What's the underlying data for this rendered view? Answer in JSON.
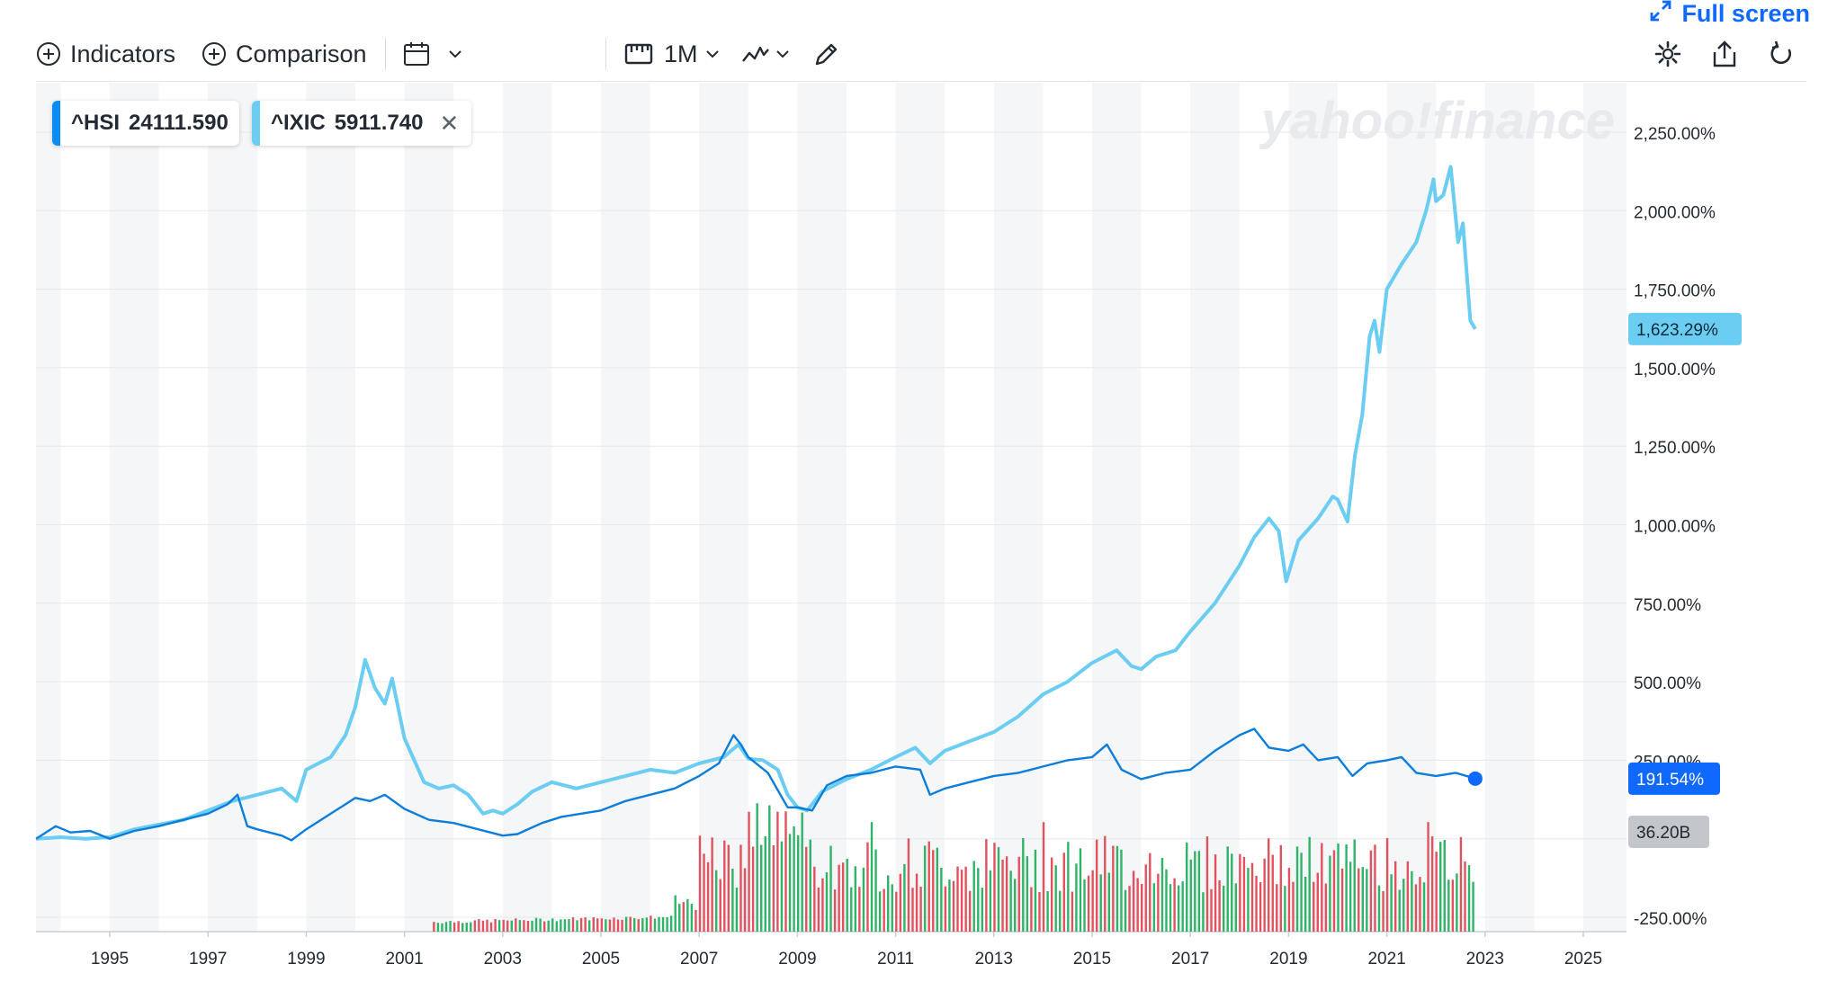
{
  "toolbar": {
    "indicators_label": "Indicators",
    "comparison_label": "Comparison",
    "interval_label": "1M",
    "fullscreen_label": "Full screen"
  },
  "legend": [
    {
      "symbol": "^HSI",
      "value": "24111.590",
      "color": "#0b8cf5"
    },
    {
      "symbol": "^IXIC",
      "value": "5911.740",
      "color": "#6bcdf2"
    }
  ],
  "watermark": "yahoo!finance",
  "colors": {
    "hsi": "#0b7dda",
    "ixic": "#6bcdf2",
    "volume_up": "#2fb368",
    "volume_down": "#e2525e",
    "accent": "#0f69ff"
  },
  "chart_data": {
    "type": "line",
    "ylim": [
      -250,
      2350
    ],
    "xlim": [
      1993.5,
      2026.5
    ],
    "y_ticks": [
      "2,250.00%",
      "2,000.00%",
      "1,750.00%",
      "1,500.00%",
      "1,250.00%",
      "1,000.00%",
      "750.00%",
      "500.00%",
      "250.00%",
      "-250.00%"
    ],
    "y_tick_values": [
      2250,
      2000,
      1750,
      1500,
      1250,
      1000,
      750,
      500,
      250,
      -250
    ],
    "x_ticks": [
      "1995",
      "1997",
      "1999",
      "2001",
      "2003",
      "2005",
      "2007",
      "2009",
      "2011",
      "2013",
      "2015",
      "2017",
      "2019",
      "2021",
      "2023",
      "2025"
    ],
    "x_tick_values": [
      1995,
      1997,
      1999,
      2001,
      2003,
      2005,
      2007,
      2009,
      2011,
      2013,
      2015,
      2017,
      2019,
      2021,
      2023,
      2025
    ],
    "badges": {
      "ixic_last": "1,623.29%",
      "hsi_last": "191.54%",
      "volume_last": "36.20B"
    },
    "series": [
      {
        "name": "^IXIC",
        "points": [
          [
            1993.5,
            0
          ],
          [
            1994.0,
            5
          ],
          [
            1994.5,
            0
          ],
          [
            1995.0,
            5
          ],
          [
            1995.5,
            30
          ],
          [
            1996.0,
            45
          ],
          [
            1996.5,
            60
          ],
          [
            1997.0,
            90
          ],
          [
            1997.5,
            120
          ],
          [
            1998.0,
            140
          ],
          [
            1998.5,
            160
          ],
          [
            1998.8,
            120
          ],
          [
            1999.0,
            220
          ],
          [
            1999.5,
            260
          ],
          [
            1999.8,
            330
          ],
          [
            2000.0,
            420
          ],
          [
            2000.2,
            570
          ],
          [
            2000.4,
            480
          ],
          [
            2000.6,
            430
          ],
          [
            2000.75,
            510
          ],
          [
            2001.0,
            320
          ],
          [
            2001.2,
            250
          ],
          [
            2001.4,
            180
          ],
          [
            2001.7,
            160
          ],
          [
            2002.0,
            170
          ],
          [
            2002.3,
            140
          ],
          [
            2002.6,
            80
          ],
          [
            2002.8,
            90
          ],
          [
            2003.0,
            80
          ],
          [
            2003.3,
            110
          ],
          [
            2003.6,
            150
          ],
          [
            2004.0,
            180
          ],
          [
            2004.5,
            160
          ],
          [
            2005.0,
            180
          ],
          [
            2005.5,
            200
          ],
          [
            2006.0,
            220
          ],
          [
            2006.5,
            210
          ],
          [
            2007.0,
            240
          ],
          [
            2007.5,
            260
          ],
          [
            2007.8,
            300
          ],
          [
            2008.0,
            255
          ],
          [
            2008.3,
            250
          ],
          [
            2008.6,
            220
          ],
          [
            2008.8,
            140
          ],
          [
            2009.0,
            100
          ],
          [
            2009.2,
            90
          ],
          [
            2009.5,
            150
          ],
          [
            2010.0,
            190
          ],
          [
            2010.5,
            220
          ],
          [
            2011.0,
            260
          ],
          [
            2011.4,
            290
          ],
          [
            2011.7,
            240
          ],
          [
            2012.0,
            280
          ],
          [
            2012.5,
            310
          ],
          [
            2013.0,
            340
          ],
          [
            2013.5,
            390
          ],
          [
            2014.0,
            460
          ],
          [
            2014.5,
            500
          ],
          [
            2015.0,
            560
          ],
          [
            2015.5,
            600
          ],
          [
            2015.8,
            550
          ],
          [
            2016.0,
            540
          ],
          [
            2016.3,
            580
          ],
          [
            2016.7,
            600
          ],
          [
            2017.0,
            660
          ],
          [
            2017.5,
            750
          ],
          [
            2018.0,
            870
          ],
          [
            2018.3,
            960
          ],
          [
            2018.6,
            1020
          ],
          [
            2018.8,
            980
          ],
          [
            2018.95,
            820
          ],
          [
            2019.2,
            950
          ],
          [
            2019.6,
            1020
          ],
          [
            2019.9,
            1090
          ],
          [
            2020.0,
            1080
          ],
          [
            2020.2,
            1010
          ],
          [
            2020.35,
            1220
          ],
          [
            2020.5,
            1350
          ],
          [
            2020.65,
            1600
          ],
          [
            2020.75,
            1650
          ],
          [
            2020.85,
            1550
          ],
          [
            2021.0,
            1750
          ],
          [
            2021.3,
            1830
          ],
          [
            2021.6,
            1900
          ],
          [
            2021.8,
            2000
          ],
          [
            2021.95,
            2100
          ],
          [
            2022.0,
            2030
          ],
          [
            2022.15,
            2050
          ],
          [
            2022.3,
            2140
          ],
          [
            2022.45,
            1900
          ],
          [
            2022.55,
            1960
          ],
          [
            2022.7,
            1650
          ],
          [
            2022.8,
            1623.29
          ]
        ]
      },
      {
        "name": "^HSI",
        "points": [
          [
            1993.5,
            0
          ],
          [
            1993.9,
            40
          ],
          [
            1994.2,
            20
          ],
          [
            1994.6,
            25
          ],
          [
            1995.0,
            0
          ],
          [
            1995.5,
            25
          ],
          [
            1996.0,
            40
          ],
          [
            1996.5,
            60
          ],
          [
            1997.0,
            80
          ],
          [
            1997.4,
            110
          ],
          [
            1997.6,
            140
          ],
          [
            1997.8,
            40
          ],
          [
            1998.0,
            30
          ],
          [
            1998.5,
            10
          ],
          [
            1998.7,
            -5
          ],
          [
            1999.0,
            30
          ],
          [
            1999.5,
            80
          ],
          [
            2000.0,
            130
          ],
          [
            2000.3,
            120
          ],
          [
            2000.6,
            140
          ],
          [
            2001.0,
            95
          ],
          [
            2001.5,
            60
          ],
          [
            2002.0,
            50
          ],
          [
            2002.5,
            30
          ],
          [
            2003.0,
            10
          ],
          [
            2003.3,
            15
          ],
          [
            2003.8,
            50
          ],
          [
            2004.2,
            70
          ],
          [
            2004.6,
            80
          ],
          [
            2005.0,
            90
          ],
          [
            2005.5,
            120
          ],
          [
            2006.0,
            140
          ],
          [
            2006.5,
            160
          ],
          [
            2007.0,
            200
          ],
          [
            2007.4,
            240
          ],
          [
            2007.7,
            330
          ],
          [
            2007.85,
            300
          ],
          [
            2008.0,
            260
          ],
          [
            2008.4,
            210
          ],
          [
            2008.8,
            100
          ],
          [
            2009.0,
            100
          ],
          [
            2009.3,
            90
          ],
          [
            2009.6,
            170
          ],
          [
            2010.0,
            200
          ],
          [
            2010.5,
            210
          ],
          [
            2011.0,
            230
          ],
          [
            2011.5,
            220
          ],
          [
            2011.7,
            140
          ],
          [
            2012.0,
            160
          ],
          [
            2012.5,
            180
          ],
          [
            2013.0,
            200
          ],
          [
            2013.5,
            210
          ],
          [
            2014.0,
            230
          ],
          [
            2014.5,
            250
          ],
          [
            2015.0,
            260
          ],
          [
            2015.3,
            300
          ],
          [
            2015.6,
            220
          ],
          [
            2016.0,
            190
          ],
          [
            2016.5,
            210
          ],
          [
            2017.0,
            220
          ],
          [
            2017.5,
            280
          ],
          [
            2018.0,
            330
          ],
          [
            2018.3,
            350
          ],
          [
            2018.6,
            290
          ],
          [
            2019.0,
            280
          ],
          [
            2019.3,
            300
          ],
          [
            2019.6,
            250
          ],
          [
            2020.0,
            260
          ],
          [
            2020.3,
            200
          ],
          [
            2020.6,
            240
          ],
          [
            2021.0,
            250
          ],
          [
            2021.3,
            260
          ],
          [
            2021.6,
            210
          ],
          [
            2022.0,
            200
          ],
          [
            2022.4,
            210
          ],
          [
            2022.8,
            191.54
          ]
        ]
      }
    ],
    "volume": {
      "label": "Volume",
      "ymax": 1.0,
      "start": 2001.6,
      "end": 2022.8,
      "step": 0.0833,
      "note_levels": "relative heights 0-1 from bottom axis"
    }
  }
}
